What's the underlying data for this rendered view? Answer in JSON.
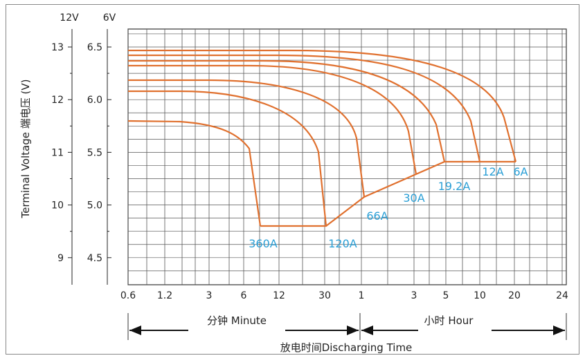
{
  "chart_data": {
    "type": "line",
    "title": "",
    "ylabel": "Terminal Voltage 端电压 (V)",
    "y_left_units": [
      "12V",
      "6V"
    ],
    "y12_ticks": [
      "13",
      "12",
      "11",
      "10",
      "9"
    ],
    "y6_ticks": [
      "6.5",
      "6.0",
      "5.5",
      "5.0",
      "4.5"
    ],
    "x_ticks": [
      "0.6",
      "1.2",
      "3",
      "6",
      "12",
      "30",
      "1",
      "3",
      "5",
      "10",
      "20",
      "24"
    ],
    "xlabel_minute": "分钟 Minute",
    "xlabel_hour": "小时 Hour",
    "xlabel_main": "放电时间Discharging Time",
    "ylim_12v": [
      8.5,
      13.6
    ],
    "colors": {
      "curve": "#e0702e",
      "label": "#2a9fd6",
      "grid": "#555555"
    },
    "series": [
      {
        "name": "6A",
        "start_v": 12.98,
        "end_time": "20 h"
      },
      {
        "name": "12A",
        "start_v": 12.9,
        "end_time": "10 h"
      },
      {
        "name": "19.2A",
        "start_v": 12.82,
        "end_time": "5 h"
      },
      {
        "name": "30A",
        "start_v": 12.74,
        "end_time": "3 h"
      },
      {
        "name": "66A",
        "start_v": 12.55,
        "end_time": "1 h"
      },
      {
        "name": "120A",
        "start_v": 12.35,
        "end_time": "30 min"
      },
      {
        "name": "360A",
        "start_v": 11.65,
        "end_time": "8 min"
      }
    ],
    "cutoff_voltage_12v": [
      {
        "current": "360A",
        "v": 9.6
      },
      {
        "current": "120A",
        "v": 9.6
      },
      {
        "current": "66A",
        "v": 10.2
      },
      {
        "current": "30A",
        "v": 10.5
      },
      {
        "current": "19.2A",
        "v": 10.8
      },
      {
        "current": "12A",
        "v": 10.8
      },
      {
        "current": "6A",
        "v": 10.8
      }
    ]
  }
}
